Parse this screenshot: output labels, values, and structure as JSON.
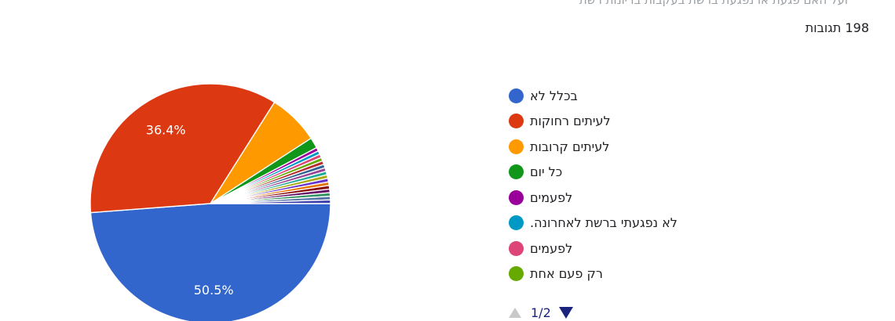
{
  "header": {
    "question_fragment": "ועל האם פגעת או נפגעת ברשת בעקבות בריונות רשת",
    "responses_label": "198 תגובות"
  },
  "legend": {
    "items": [
      {
        "label": "בכלל לא",
        "color": "#3366cc"
      },
      {
        "label": "לעיתים רחוקות",
        "color": "#dc3912"
      },
      {
        "label": "לעיתים קרובות",
        "color": "#ff9900"
      },
      {
        "label": "כל יום",
        "color": "#109618"
      },
      {
        "label": "לפעמים",
        "color": "#990099"
      },
      {
        "label": "לא נפגעתי ברשת לאחרונה.",
        "color": "#0099c6"
      },
      {
        "label": "לפעמים",
        "color": "#dd4477"
      },
      {
        "label": "רק פעם אחת",
        "color": "#66aa00"
      }
    ]
  },
  "pager": {
    "text": "1/2",
    "prev_icon": "triangle-up-icon",
    "next_icon": "triangle-down-icon"
  },
  "chart_data": {
    "type": "pie",
    "title": "",
    "total_responses": 198,
    "slices": [
      {
        "label": "בכלל לא",
        "value": 50.5,
        "color": "#3366cc",
        "shown_label": "50.5%"
      },
      {
        "label": "לעיתים רחוקות",
        "value": 36.4,
        "color": "#dc3912",
        "shown_label": "36.4%"
      },
      {
        "label": "לעיתים קרובות",
        "value": 7.1,
        "color": "#ff9900"
      },
      {
        "label": "כל יום",
        "value": 1.5,
        "color": "#109618"
      },
      {
        "label": "לפעמים",
        "value": 0.5,
        "color": "#990099"
      },
      {
        "label": "לא נפגעתי ברשת לאחרונה.",
        "value": 0.5,
        "color": "#0099c6"
      },
      {
        "label": "לפעמים",
        "value": 0.5,
        "color": "#dd4477"
      },
      {
        "label": "רק פעם אחת",
        "value": 0.5,
        "color": "#66aa00"
      },
      {
        "label": "",
        "value": 0.5,
        "color": "#b82e2e"
      },
      {
        "label": "",
        "value": 0.5,
        "color": "#316395"
      },
      {
        "label": "",
        "value": 0.5,
        "color": "#994499"
      },
      {
        "label": "",
        "value": 0.5,
        "color": "#22aa99"
      },
      {
        "label": "",
        "value": 0.5,
        "color": "#aaaa11"
      },
      {
        "label": "",
        "value": 0.5,
        "color": "#6633cc"
      },
      {
        "label": "",
        "value": 0.5,
        "color": "#e67300"
      },
      {
        "label": "",
        "value": 0.5,
        "color": "#8b0707"
      },
      {
        "label": "",
        "value": 0.5,
        "color": "#651067"
      },
      {
        "label": "",
        "value": 0.5,
        "color": "#329262"
      },
      {
        "label": "",
        "value": 0.5,
        "color": "#5574a6"
      },
      {
        "label": "",
        "value": 0.5,
        "color": "#3b3eac"
      }
    ]
  }
}
